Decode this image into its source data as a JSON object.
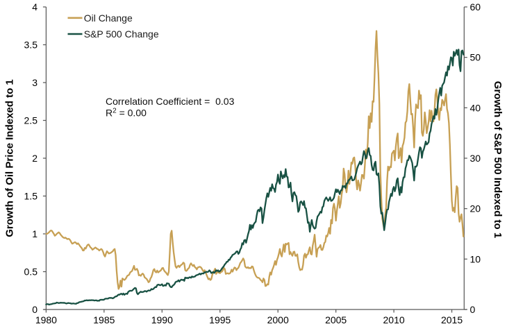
{
  "chart_data": {
    "type": "line",
    "title": "",
    "x_start_year": 1980,
    "x_step_months": 1,
    "x_end_year": 2016,
    "x_ticks": [
      1980,
      1985,
      1990,
      1995,
      2000,
      2005,
      2010,
      2015
    ],
    "left_axis": {
      "label": "Growth of Oil Price Indexed to 1",
      "ticks": [
        0,
        0.5,
        1,
        1.5,
        2,
        2.5,
        3,
        3.5,
        4
      ],
      "tick_labels": [
        "0",
        "0.5",
        "1",
        "1.5",
        "2",
        "2.5",
        "3",
        "3.5",
        "4"
      ],
      "range": [
        0,
        4
      ]
    },
    "right_axis": {
      "label": "Growth of S&P 500 Indexed to 1",
      "ticks": [
        0,
        10,
        20,
        30,
        40,
        50,
        60
      ],
      "tick_labels": [
        "0",
        "10",
        "20",
        "30",
        "40",
        "50",
        "60"
      ],
      "range": [
        0,
        60
      ]
    },
    "grid": "off",
    "legend_position": "top-left-inside",
    "series": [
      {
        "name": "Oil Change",
        "axis": "left",
        "color": "#C7A054",
        "values": [
          1.0,
          1.0,
          1.01,
          1.02,
          1.035,
          1.045,
          1.04,
          1.02,
          1.0,
          0.975,
          0.985,
          1.0,
          1.01,
          1.02,
          1.01,
          0.99,
          0.975,
          0.96,
          0.95,
          0.945,
          0.95,
          0.94,
          0.93,
          0.935,
          0.93,
          0.915,
          0.89,
          0.87,
          0.875,
          0.885,
          0.89,
          0.88,
          0.865,
          0.875,
          0.86,
          0.84,
          0.825,
          0.81,
          0.78,
          0.78,
          0.815,
          0.805,
          0.835,
          0.855,
          0.86,
          0.84,
          0.82,
          0.81,
          0.79,
          0.8,
          0.81,
          0.82,
          0.81,
          0.8,
          0.795,
          0.78,
          0.79,
          0.8,
          0.79,
          0.76,
          0.72,
          0.7,
          0.74,
          0.77,
          0.755,
          0.74,
          0.745,
          0.75,
          0.76,
          0.77,
          0.79,
          0.8,
          0.72,
          0.51,
          0.36,
          0.272,
          0.3,
          0.383,
          0.302,
          0.41,
          0.4,
          0.39,
          0.4,
          0.42,
          0.445,
          0.452,
          0.46,
          0.49,
          0.5,
          0.51,
          0.542,
          0.577,
          0.524,
          0.527,
          0.538,
          0.511,
          0.451,
          0.455,
          0.445,
          0.465,
          0.475,
          0.46,
          0.425,
          0.415,
          0.405,
          0.385,
          0.36,
          0.37,
          0.41,
          0.43,
          0.47,
          0.52,
          0.535,
          0.5,
          0.49,
          0.515,
          0.49,
          0.5,
          0.51,
          0.52,
          0.545,
          0.55,
          0.52,
          0.5,
          0.49,
          0.47,
          0.455,
          0.5,
          0.74,
          1.0,
          1.042,
          0.89,
          0.76,
          0.66,
          0.57,
          0.55,
          0.57,
          0.58,
          0.56,
          0.58,
          0.59,
          0.6,
          0.62,
          0.61,
          0.52,
          0.51,
          0.52,
          0.54,
          0.55,
          0.59,
          0.61,
          0.59,
          0.575,
          0.59,
          0.56,
          0.55,
          0.53,
          0.555,
          0.56,
          0.565,
          0.56,
          0.545,
          0.52,
          0.5,
          0.52,
          0.5,
          0.46,
          0.43,
          0.4,
          0.41,
          0.39,
          0.4,
          0.457,
          0.495,
          0.514,
          0.54,
          0.47,
          0.497,
          0.49,
          0.486,
          0.48,
          0.497,
          0.5,
          0.52,
          0.55,
          0.535,
          0.47,
          0.476,
          0.48,
          0.473,
          0.476,
          0.49,
          0.527,
          0.5,
          0.53,
          0.555,
          0.55,
          0.52,
          0.54,
          0.55,
          0.58,
          0.615,
          0.63,
          0.65,
          0.675,
          0.65,
          0.57,
          0.555,
          0.55,
          0.56,
          0.545,
          0.55,
          0.545,
          0.57,
          0.565,
          0.52,
          0.48,
          0.45,
          0.43,
          0.42,
          0.42,
          0.41,
          0.39,
          0.38,
          0.36,
          0.41,
          0.39,
          0.31,
          0.315,
          0.335,
          0.33,
          0.43,
          0.49,
          0.46,
          0.52,
          0.55,
          0.59,
          0.64,
          0.59,
          0.655,
          0.69,
          0.74,
          0.8,
          0.73,
          0.7,
          0.78,
          0.86,
          0.76,
          0.87,
          0.86,
          0.87,
          0.88,
          0.73,
          0.76,
          0.73,
          0.71,
          0.76,
          0.765,
          0.71,
          0.71,
          0.73,
          0.63,
          0.56,
          0.52,
          0.53,
          0.527,
          0.588,
          0.711,
          0.738,
          0.684,
          0.726,
          0.73,
          0.783,
          0.823,
          0.736,
          0.727,
          0.843,
          0.906,
          0.989,
          0.839,
          0.697,
          0.799,
          0.816,
          0.825,
          0.853,
          0.789,
          0.787,
          0.822,
          0.879,
          0.893,
          0.977,
          0.966,
          1.01,
          1.078,
          1.001,
          1.184,
          1.138,
          1.342,
          1.399,
          1.328,
          1.174,
          1.303,
          1.399,
          1.497,
          1.344,
          1.405,
          1.527,
          1.595,
          1.863,
          1.79,
          1.615,
          1.549,
          1.65,
          1.836,
          1.66,
          1.801,
          1.943,
          1.927,
          1.998,
          2.011,
          1.899,
          1.7,
          1.587,
          1.706,
          1.65,
          1.571,
          1.67,
          1.78,
          1.776,
          1.73,
          1.91,
          2.114,
          2.001,
          2.207,
          2.555,
          2.398,
          2.594,
          2.48,
          2.753,
          2.746,
          3.067,
          3.442,
          3.682,
          3.353,
          3.121,
          2.72,
          1.833,
          1.471,
          1.205,
          1.13,
          1.06,
          1.25,
          1.35,
          1.7,
          1.89,
          1.84,
          1.89,
          1.88,
          2.06,
          2.08,
          2.1,
          1.97,
          2.153,
          2.264,
          2.328,
          1.999,
          2.044,
          2.134,
          1.944,
          2.161,
          2.201,
          2.273,
          2.47,
          2.492,
          2.621,
          2.884,
          2.98,
          2.776,
          2.579,
          2.586,
          2.4,
          2.141,
          2.519,
          2.712,
          2.671,
          2.662,
          2.894,
          2.784,
          2.834,
          2.339,
          2.296,
          2.38,
          2.607,
          2.492,
          2.331,
          2.403,
          2.482,
          2.635,
          2.488,
          2.628,
          2.526,
          2.486,
          2.61,
          2.839,
          2.91,
          2.766,
          2.605,
          2.506,
          2.66,
          2.635,
          2.773,
          2.746,
          2.696,
          2.776,
          2.848,
          2.653,
          2.594,
          2.464,
          2.177,
          1.788,
          1.44,
          1.304,
          1.345,
          1.286,
          1.48,
          1.63,
          1.607,
          1.274,
          1.16,
          1.219,
          1.259,
          1.126,
          0.965
        ]
      },
      {
        "name": "S&P 500 Change",
        "axis": "right",
        "color": "#185143",
        "values": [
          1.0,
          1.063,
          1.066,
          0.963,
          1.007,
          1.057,
          1.091,
          1.168,
          1.183,
          1.217,
          1.243,
          1.376,
          1.333,
          1.277,
          1.299,
          1.351,
          1.324,
          1.326,
          1.316,
          1.318,
          1.242,
          1.18,
          1.242,
          1.293,
          1.26,
          1.239,
          1.168,
          1.161,
          1.212,
          1.168,
          1.148,
          1.123,
          1.262,
          1.276,
          1.425,
          1.482,
          1.51,
          1.566,
          1.599,
          1.658,
          1.793,
          1.777,
          1.844,
          1.789,
          1.816,
          1.841,
          1.819,
          1.857,
          1.846,
          1.835,
          1.771,
          1.801,
          1.817,
          1.717,
          1.755,
          1.734,
          1.93,
          1.93,
          1.937,
          1.916,
          1.966,
          2.119,
          2.145,
          2.147,
          2.145,
          2.269,
          2.305,
          2.299,
          2.278,
          2.207,
          2.309,
          2.468,
          2.587,
          2.602,
          2.797,
          2.954,
          2.921,
          3.076,
          3.128,
          2.953,
          3.172,
          2.909,
          3.077,
          3.151,
          3.069,
          3.493,
          3.632,
          3.738,
          3.704,
          3.737,
          3.928,
          4.128,
          4.281,
          4.187,
          3.287,
          3.017,
          3.247,
          3.383,
          3.542,
          3.436,
          3.473,
          3.505,
          3.666,
          3.651,
          3.527,
          3.679,
          3.782,
          3.729,
          3.796,
          4.073,
          3.971,
          4.063,
          4.274,
          4.445,
          4.418,
          4.829,
          4.926,
          4.906,
          4.793,
          4.889,
          5.006,
          4.671,
          4.732,
          4.855,
          4.733,
          5.192,
          5.156,
          5.141,
          4.678,
          4.449,
          4.431,
          4.714,
          4.846,
          5.06,
          5.424,
          5.554,
          5.565,
          5.805,
          5.538,
          5.798,
          5.937,
          5.836,
          5.912,
          5.675,
          6.34,
          6.219,
          6.3,
          6.18,
          6.359,
          6.391,
          6.295,
          6.553,
          6.422,
          6.499,
          6.519,
          6.741,
          6.822,
          6.876,
          6.972,
          7.119,
          6.948,
          7.136,
          7.157,
          7.128,
          7.399,
          7.34,
          7.494,
          7.427,
          7.516,
          7.771,
          7.562,
          7.229,
          7.323,
          7.44,
          7.254,
          7.493,
          7.801,
          7.613,
          7.781,
          7.501,
          7.613,
          7.811,
          8.116,
          8.359,
          8.602,
          8.946,
          9.152,
          9.454,
          9.482,
          9.88,
          9.841,
          10.274,
          10.469,
          10.825,
          10.922,
          11.031,
          11.197,
          11.488,
          11.534,
          11.026,
          11.258,
          11.888,
          12.221,
          13.15,
          12.887,
          13.686,
          13.796,
          13.23,
          14.024,
          14.879,
          15.549,
          16.793,
          15.852,
          16.724,
          16.172,
          16.916,
          17.204,
          17.393,
          18.645,
          19.596,
          19.792,
          19.456,
          20.253,
          20.031,
          17.126,
          18.222,
          19.698,
          20.9,
          22.112,
          23.041,
          22.326,
          23.22,
          24.125,
          23.546,
          24.841,
          24.071,
          23.951,
          23.304,
          24.772,
          25.268,
          26.758,
          25.421,
          24.938,
          27.381,
          26.56,
          26.002,
          26.652,
          26.226,
          27.852,
          26.376,
          26.27,
          24.195,
          24.316,
          25.167,
          22.877,
          21.435,
          23.107,
          23.269,
          22.711,
          22.484,
          21.067,
          19.361,
          19.729,
          21.248,
          21.439,
          21.117,
          20.716,
          21.503,
          20.192,
          20.05,
          18.627,
          17.174,
          17.294,
          15.409,
          16.765,
          17.754,
          16.707,
          16.272,
          16.028,
          16.188,
          17.516,
          18.444,
          18.684,
          19.02,
          19.401,
          19.187,
          20.281,
          20.463,
          21.528,
          21.915,
          22.222,
          21.889,
          21.538,
          21.84,
          22.255,
          21.52,
          21.607,
          21.844,
          22.172,
          23.059,
          23.843,
          23.27,
          23.759,
          23.331,
          22.888,
          23.621,
          23.644,
          24.519,
          24.298,
          24.493,
          24.076,
          24.991,
          24.991,
          25.641,
          25.718,
          26.027,
          26.365,
          25.6,
          25.626,
          25.78,
          26.398,
          27.085,
          27.979,
          28.51,
          28.909,
          29.343,
          28.756,
          29.072,
          30.352,
          31.414,
          30.88,
          29.923,
          30.371,
          31.495,
          31.999,
          30.655,
          30.441,
          28.614,
          27.699,
          27.588,
          28.94,
          29.316,
          26.853,
          26.638,
          27.011,
          24.607,
          20.473,
          18.999,
          19.208,
          17.595,
          15.73,
          17.114,
          18.757,
          19.807,
          19.847,
          21.355,
          22.124,
          22.943,
          22.507,
          23.857,
          24.31,
          23.435,
          24.162,
          25.611,
          26.021,
          23.939,
          22.695,
          24.283,
          23.19,
          25.254,
          26.214,
          26.214,
          27.97,
          28.642,
          29.616,
          29.616,
          30.504,
          30.168,
          29.656,
          29.062,
          27.493,
          25.569,
          28.356,
          28.299,
          28.582,
          29.868,
          31.152,
          32.18,
          31.987,
          30.068,
          31.301,
          31.739,
          32.469,
          33.313,
          32.714,
          32.91,
          33.206,
          34.933,
          35.422,
          36.768,
          37.466,
          38.328,
          37.83,
          39.759,
          38.606,
          39.803,
          41.634,
          42.883,
          43.955,
          42.417,
          44.368,
          44.723,
          45.036,
          46.072,
          47.039,
          46.381,
          48.236,
          47.56,
          48.702,
          50.017,
          49.867,
          48.371,
          51.128,
          50.31,
          50.813,
          51.474,
          50.496,
          51.556,
          48.463,
          47.251,
          51.22,
          51.374,
          50.552
        ]
      }
    ],
    "annotation": {
      "line1": "Correlation Coefficient =  0.03",
      "line2_base": "R",
      "line2_sup": "2",
      "line2_rest": " = 0.00"
    }
  },
  "legend": {
    "items": [
      {
        "label": "Oil Change"
      },
      {
        "label": "S&P 500 Change"
      }
    ]
  },
  "colors": {
    "oil": "#C7A054",
    "sp500": "#185143",
    "axis": "#595959",
    "text": "#000000",
    "background": "#FFFFFF"
  }
}
